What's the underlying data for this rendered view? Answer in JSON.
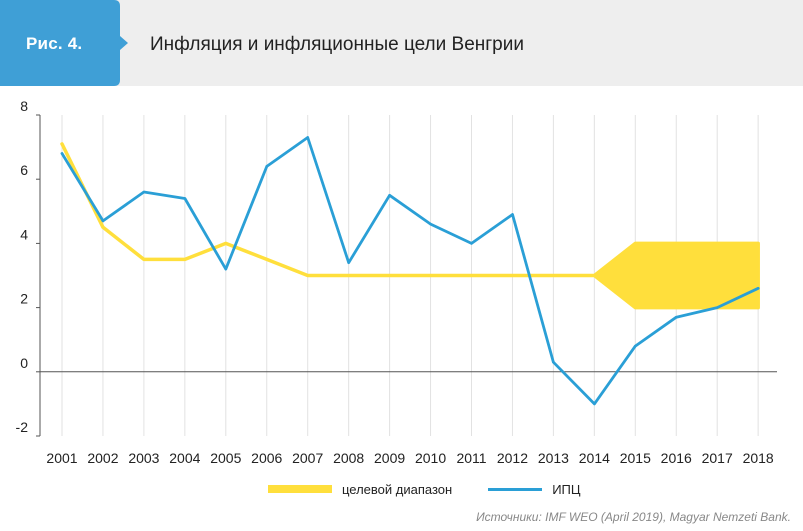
{
  "figure": {
    "label": "Рис. 4.",
    "title": "Инфляция и инфляционные цели Венгрии",
    "source": "Источники: IMF WEO (April 2019), Magyar Nemzeti Bank.",
    "colors": {
      "badge": "#3f9fd6",
      "header_bg": "#eeeeee"
    }
  },
  "chart_data": {
    "type": "line",
    "categories": [
      "2001",
      "2002",
      "2003",
      "2004",
      "2005",
      "2006",
      "2007",
      "2008",
      "2009",
      "2010",
      "2011",
      "2012",
      "2013",
      "2014",
      "2015",
      "2016",
      "2017",
      "2018"
    ],
    "ylim": [
      -2,
      8
    ],
    "yticks": [
      -2,
      0,
      2,
      4,
      6,
      8
    ],
    "grid": "vertical",
    "legend_position": "bottom",
    "series": [
      {
        "name": "целевой диапазон",
        "kind": "band",
        "color": "#ffdf3c",
        "lower": [
          7.1,
          4.5,
          3.5,
          3.5,
          4.0,
          3.5,
          3.0,
          3.0,
          3.0,
          3.0,
          3.0,
          3.0,
          3.0,
          3.0,
          2.0,
          2.0,
          2.0,
          2.0
        ],
        "upper": [
          7.1,
          4.5,
          3.5,
          3.5,
          4.0,
          3.5,
          3.0,
          3.0,
          3.0,
          3.0,
          3.0,
          3.0,
          3.0,
          3.0,
          4.0,
          4.0,
          4.0,
          4.0
        ]
      },
      {
        "name": "ИПЦ",
        "kind": "line",
        "color": "#2a9fd6",
        "values": [
          6.8,
          4.7,
          5.6,
          5.4,
          3.2,
          6.4,
          7.3,
          3.4,
          5.5,
          4.6,
          4.0,
          4.9,
          0.3,
          -1.0,
          0.8,
          1.7,
          2.0,
          2.6
        ]
      }
    ]
  }
}
